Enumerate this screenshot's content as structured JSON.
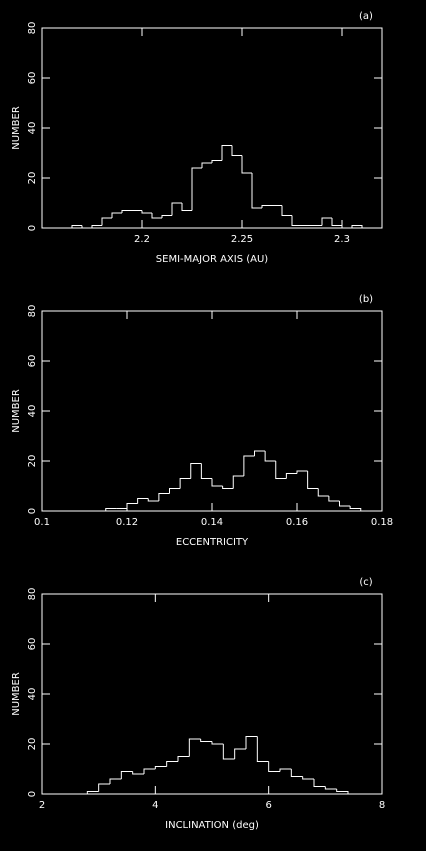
{
  "chart_data": [
    {
      "type": "histogram",
      "annotation": "(a)",
      "xlabel": "SEMI-MAJOR AXIS (AU)",
      "ylabel": "NUMBER",
      "bins": [
        2.165,
        2.17,
        2.175,
        2.18,
        2.185,
        2.19,
        2.195,
        2.2,
        2.205,
        2.21,
        2.215,
        2.22,
        2.225,
        2.23,
        2.235,
        2.24,
        2.245,
        2.25,
        2.255,
        2.26,
        2.265,
        2.27,
        2.275,
        2.28,
        2.285,
        2.29,
        2.295,
        2.3,
        2.305,
        2.31
      ],
      "values": [
        1,
        0,
        1,
        4,
        6,
        7,
        7,
        6,
        4,
        5,
        10,
        7,
        24,
        26,
        27,
        33,
        29,
        22,
        8,
        9,
        9,
        5,
        1,
        1,
        1,
        4,
        1,
        0,
        1
      ],
      "color": "#ffffff",
      "xlim": [
        2.15,
        2.32
      ],
      "ylim": [
        0,
        80
      ],
      "xticks": [
        2.2,
        2.25,
        2.3
      ],
      "yticks": [
        0,
        20,
        40,
        60,
        80
      ]
    },
    {
      "type": "histogram",
      "annotation": "(b)",
      "xlabel": "ECCENTRICITY",
      "ylabel": "NUMBER",
      "bins": [
        0.115,
        0.1175,
        0.12,
        0.1225,
        0.125,
        0.1275,
        0.13,
        0.1325,
        0.135,
        0.1375,
        0.14,
        0.1425,
        0.145,
        0.1475,
        0.15,
        0.1525,
        0.155,
        0.1575,
        0.16,
        0.1625,
        0.165,
        0.1675,
        0.17,
        0.1725,
        0.175
      ],
      "values": [
        1,
        1,
        3,
        5,
        4,
        7,
        9,
        13,
        19,
        13,
        10,
        9,
        14,
        22,
        24,
        20,
        13,
        15,
        16,
        9,
        6,
        4,
        2,
        1
      ],
      "color": "#ffffff",
      "xlim": [
        0.1,
        0.18
      ],
      "ylim": [
        0,
        80
      ],
      "xticks": [
        0.1,
        0.12,
        0.14,
        0.16,
        0.18
      ],
      "yticks": [
        0,
        20,
        40,
        60,
        80
      ]
    },
    {
      "type": "histogram",
      "annotation": "(c)",
      "xlabel": "INCLINATION (deg)",
      "ylabel": "NUMBER",
      "bins": [
        2.8,
        3.0,
        3.2,
        3.4,
        3.6,
        3.8,
        4.0,
        4.2,
        4.4,
        4.6,
        4.8,
        5.0,
        5.2,
        5.4,
        5.6,
        5.8,
        6.0,
        6.2,
        6.4,
        6.6,
        6.8,
        7.0,
        7.2,
        7.4
      ],
      "values": [
        1,
        4,
        6,
        9,
        8,
        10,
        11,
        13,
        15,
        22,
        21,
        20,
        14,
        18,
        23,
        13,
        9,
        10,
        7,
        6,
        3,
        2,
        1
      ],
      "color": "#ffffff",
      "xlim": [
        2,
        8
      ],
      "ylim": [
        0,
        80
      ],
      "xticks": [
        2,
        4,
        6,
        8
      ],
      "yticks": [
        0,
        20,
        40,
        60,
        80
      ]
    }
  ]
}
